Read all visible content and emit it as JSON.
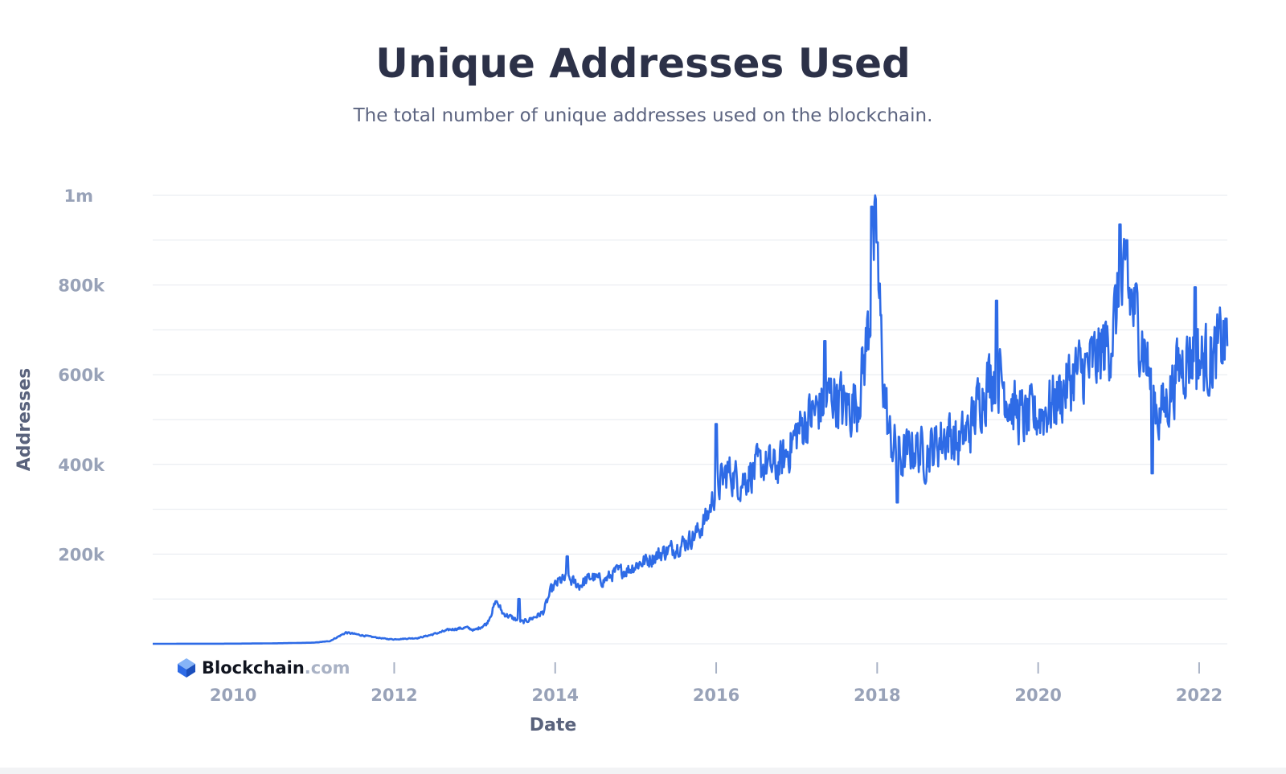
{
  "header": {
    "title": "Unique Addresses Used",
    "subtitle": "The total number of unique addresses used on the blockchain."
  },
  "brand": {
    "name": "Blockchain",
    "domain": ".com",
    "icon": "blockchain-logo-icon"
  },
  "colors": {
    "line": "#2e6be6",
    "grid": "#e6e9ef",
    "tick_text": "#98a2b8",
    "axis_label": "#59627c",
    "title": "#2c3148"
  },
  "chart_data": {
    "type": "line",
    "title": "Unique Addresses Used",
    "subtitle": "The total number of unique addresses used on the blockchain.",
    "xlabel": "Date",
    "ylabel": "Addresses",
    "xlim": [
      2009.0,
      2022.35
    ],
    "ylim": [
      0,
      1000000
    ],
    "y_ticks": [
      {
        "value": 200000,
        "label": "200k"
      },
      {
        "value": 400000,
        "label": "400k"
      },
      {
        "value": 600000,
        "label": "600k"
      },
      {
        "value": 800000,
        "label": "800k"
      },
      {
        "value": 1000000,
        "label": "1m"
      }
    ],
    "x_ticks": [
      {
        "value": 2010,
        "label": "2010"
      },
      {
        "value": 2012,
        "label": "2012"
      },
      {
        "value": 2014,
        "label": "2014"
      },
      {
        "value": 2016,
        "label": "2016"
      },
      {
        "value": 2018,
        "label": "2018"
      },
      {
        "value": 2020,
        "label": "2020"
      },
      {
        "value": 2022,
        "label": "2022"
      }
    ],
    "grid": true,
    "series": [
      {
        "name": "Unique Addresses",
        "points": [
          [
            2009.0,
            0
          ],
          [
            2010.0,
            300
          ],
          [
            2010.5,
            1000
          ],
          [
            2011.0,
            2500
          ],
          [
            2011.2,
            6000
          ],
          [
            2011.4,
            25000
          ],
          [
            2011.5,
            22000
          ],
          [
            2011.7,
            16000
          ],
          [
            2011.9,
            11000
          ],
          [
            2012.0,
            10000
          ],
          [
            2012.3,
            13000
          ],
          [
            2012.5,
            22000
          ],
          [
            2012.7,
            32000
          ],
          [
            2012.9,
            36000
          ],
          [
            2013.0,
            30000
          ],
          [
            2013.15,
            45000
          ],
          [
            2013.27,
            95000
          ],
          [
            2013.35,
            68000
          ],
          [
            2013.5,
            55000
          ],
          [
            2013.6,
            48000
          ],
          [
            2013.75,
            60000
          ],
          [
            2013.85,
            70000
          ],
          [
            2013.95,
            120000
          ],
          [
            2014.05,
            140000
          ],
          [
            2014.15,
            145000
          ],
          [
            2014.3,
            130000
          ],
          [
            2014.45,
            150000
          ],
          [
            2014.6,
            140000
          ],
          [
            2014.75,
            160000
          ],
          [
            2014.9,
            165000
          ],
          [
            2015.05,
            180000
          ],
          [
            2015.2,
            190000
          ],
          [
            2015.35,
            205000
          ],
          [
            2015.5,
            215000
          ],
          [
            2015.65,
            230000
          ],
          [
            2015.8,
            255000
          ],
          [
            2015.9,
            290000
          ],
          [
            2016.0,
            345000
          ],
          [
            2016.15,
            385000
          ],
          [
            2016.3,
            360000
          ],
          [
            2016.45,
            385000
          ],
          [
            2016.6,
            400000
          ],
          [
            2016.75,
            390000
          ],
          [
            2016.85,
            415000
          ],
          [
            2017.0,
            470000
          ],
          [
            2017.15,
            505000
          ],
          [
            2017.3,
            530000
          ],
          [
            2017.45,
            560000
          ],
          [
            2017.6,
            525000
          ],
          [
            2017.75,
            540000
          ],
          [
            2017.85,
            640000
          ],
          [
            2017.92,
            760000
          ],
          [
            2017.97,
            900000
          ],
          [
            2018.02,
            780000
          ],
          [
            2018.08,
            580000
          ],
          [
            2018.15,
            460000
          ],
          [
            2018.3,
            410000
          ],
          [
            2018.45,
            440000
          ],
          [
            2018.6,
            420000
          ],
          [
            2018.75,
            450000
          ],
          [
            2018.9,
            470000
          ],
          [
            2019.0,
            440000
          ],
          [
            2019.15,
            480000
          ],
          [
            2019.3,
            560000
          ],
          [
            2019.45,
            610000
          ],
          [
            2019.55,
            590000
          ],
          [
            2019.7,
            520000
          ],
          [
            2019.85,
            500000
          ],
          [
            2020.0,
            510000
          ],
          [
            2020.15,
            530000
          ],
          [
            2020.3,
            560000
          ],
          [
            2020.45,
            600000
          ],
          [
            2020.6,
            610000
          ],
          [
            2020.75,
            640000
          ],
          [
            2020.9,
            680000
          ],
          [
            2021.0,
            760000
          ],
          [
            2021.1,
            790000
          ],
          [
            2021.2,
            740000
          ],
          [
            2021.3,
            680000
          ],
          [
            2021.4,
            580000
          ],
          [
            2021.5,
            510000
          ],
          [
            2021.6,
            540000
          ],
          [
            2021.75,
            620000
          ],
          [
            2021.9,
            650000
          ],
          [
            2022.05,
            630000
          ],
          [
            2022.2,
            640000
          ],
          [
            2022.33,
            690000
          ]
        ],
        "peaks": [
          [
            2013.27,
            95000
          ],
          [
            2013.55,
            100000
          ],
          [
            2014.15,
            195000
          ],
          [
            2016.0,
            490000
          ],
          [
            2017.35,
            675000
          ],
          [
            2017.93,
            975000
          ],
          [
            2018.0,
            895000
          ],
          [
            2018.25,
            315000
          ],
          [
            2019.48,
            765000
          ],
          [
            2021.02,
            935000
          ],
          [
            2021.1,
            900000
          ],
          [
            2021.42,
            380000
          ],
          [
            2021.95,
            795000
          ],
          [
            2022.33,
            725000
          ]
        ]
      }
    ]
  }
}
